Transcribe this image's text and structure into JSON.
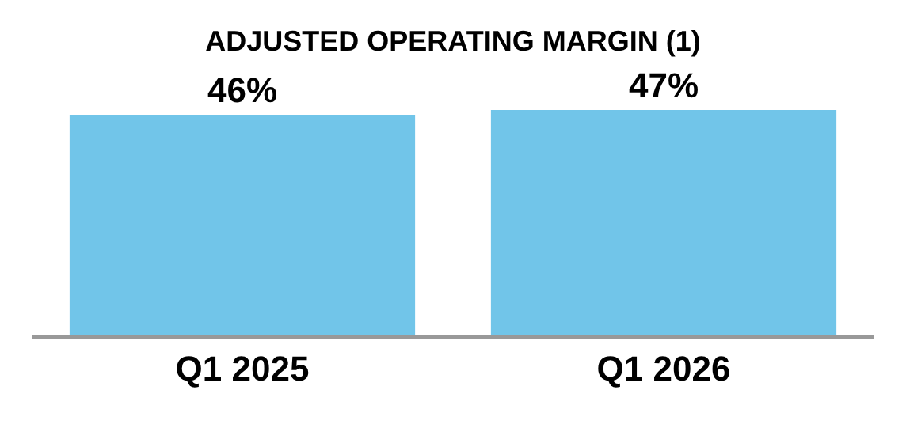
{
  "chart_data": {
    "type": "bar",
    "title": "ADJUSTED OPERATING MARGIN (1)",
    "categories": [
      "Q1 2025",
      "Q1 2026"
    ],
    "values": [
      46,
      47
    ],
    "value_labels": [
      "46%",
      "47%"
    ],
    "color": "#71c5e9"
  }
}
